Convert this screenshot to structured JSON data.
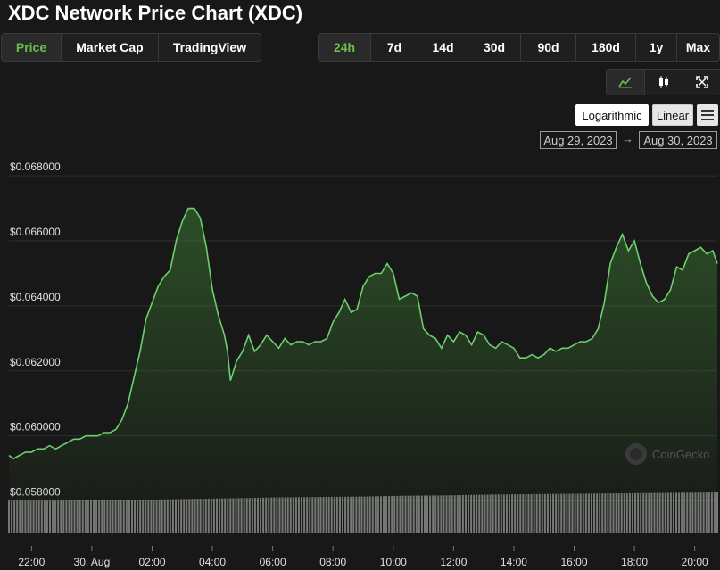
{
  "title": "XDC Network Price Chart (XDC)",
  "metric_tabs": [
    {
      "label": "Price",
      "active": true
    },
    {
      "label": "Market Cap",
      "active": false
    },
    {
      "label": "TradingView",
      "active": false
    }
  ],
  "range_tabs": [
    {
      "label": "24h",
      "active": true
    },
    {
      "label": "7d",
      "active": false
    },
    {
      "label": "14d",
      "active": false
    },
    {
      "label": "30d",
      "active": false
    },
    {
      "label": "90d",
      "active": false
    },
    {
      "label": "180d",
      "active": false
    },
    {
      "label": "1y",
      "active": false
    },
    {
      "label": "Max",
      "active": false
    }
  ],
  "view_icons": [
    "line-chart-icon",
    "candlestick-icon",
    "fullscreen-icon"
  ],
  "scale": {
    "log_label": "Logarithmic",
    "linear_label": "Linear",
    "selected": "Linear"
  },
  "date_range": {
    "from": "Aug 29, 2023",
    "arrow": "→",
    "to": "Aug 30, 2023"
  },
  "watermark": "CoinGecko",
  "colors": {
    "line": "#6ccf6c",
    "active_tab": "#6abf4b",
    "volume": "#8a8a8a"
  },
  "chart_data": {
    "type": "area",
    "title": "",
    "xlabel": "",
    "ylabel": "",
    "x_unit": "hours",
    "x_range": [
      -2.75,
      20.75
    ],
    "ylim": [
      0.057,
      0.0688
    ],
    "y_ticks": [
      {
        "value": 0.058,
        "label": "$0.058000"
      },
      {
        "value": 0.06,
        "label": "$0.060000"
      },
      {
        "value": 0.062,
        "label": "$0.062000"
      },
      {
        "value": 0.064,
        "label": "$0.064000"
      },
      {
        "value": 0.066,
        "label": "$0.066000"
      },
      {
        "value": 0.068,
        "label": "$0.068000"
      }
    ],
    "x_ticks": [
      {
        "x": -2,
        "label": "22:00"
      },
      {
        "x": 0,
        "label": "30. Aug"
      },
      {
        "x": 2,
        "label": "02:00"
      },
      {
        "x": 4,
        "label": "04:00"
      },
      {
        "x": 6,
        "label": "06:00"
      },
      {
        "x": 8,
        "label": "08:00"
      },
      {
        "x": 10,
        "label": "10:00"
      },
      {
        "x": 12,
        "label": "12:00"
      },
      {
        "x": 14,
        "label": "14:00"
      },
      {
        "x": 16,
        "label": "16:00"
      },
      {
        "x": 18,
        "label": "18:00"
      },
      {
        "x": 20,
        "label": "20:00"
      }
    ],
    "grid": true,
    "series": [
      {
        "points": [
          [
            -2.75,
            0.0594
          ],
          [
            -2.6,
            0.0593
          ],
          [
            -2.4,
            0.0594
          ],
          [
            -2.2,
            0.0595
          ],
          [
            -2.0,
            0.0595
          ],
          [
            -1.8,
            0.0596
          ],
          [
            -1.6,
            0.0596
          ],
          [
            -1.4,
            0.0597
          ],
          [
            -1.2,
            0.0596
          ],
          [
            -1.0,
            0.0597
          ],
          [
            -0.8,
            0.0598
          ],
          [
            -0.6,
            0.0599
          ],
          [
            -0.4,
            0.0599
          ],
          [
            -0.2,
            0.06
          ],
          [
            0.0,
            0.06
          ],
          [
            0.2,
            0.06
          ],
          [
            0.4,
            0.0601
          ],
          [
            0.6,
            0.0601
          ],
          [
            0.8,
            0.0602
          ],
          [
            1.0,
            0.0605
          ],
          [
            1.2,
            0.061
          ],
          [
            1.4,
            0.0618
          ],
          [
            1.6,
            0.0626
          ],
          [
            1.8,
            0.0636
          ],
          [
            2.0,
            0.0641
          ],
          [
            2.2,
            0.0646
          ],
          [
            2.4,
            0.0649
          ],
          [
            2.6,
            0.0651
          ],
          [
            2.8,
            0.066
          ],
          [
            3.0,
            0.0666
          ],
          [
            3.2,
            0.067
          ],
          [
            3.4,
            0.067
          ],
          [
            3.6,
            0.0667
          ],
          [
            3.8,
            0.0658
          ],
          [
            4.0,
            0.0645
          ],
          [
            4.2,
            0.0637
          ],
          [
            4.4,
            0.0631
          ],
          [
            4.5,
            0.0626
          ],
          [
            4.6,
            0.0617
          ],
          [
            4.8,
            0.0623
          ],
          [
            5.0,
            0.0626
          ],
          [
            5.2,
            0.0631
          ],
          [
            5.4,
            0.0626
          ],
          [
            5.6,
            0.0628
          ],
          [
            5.8,
            0.0631
          ],
          [
            6.0,
            0.0629
          ],
          [
            6.2,
            0.0627
          ],
          [
            6.4,
            0.063
          ],
          [
            6.6,
            0.0628
          ],
          [
            6.8,
            0.0629
          ],
          [
            7.0,
            0.0629
          ],
          [
            7.2,
            0.0628
          ],
          [
            7.4,
            0.0629
          ],
          [
            7.6,
            0.0629
          ],
          [
            7.8,
            0.063
          ],
          [
            8.0,
            0.0635
          ],
          [
            8.2,
            0.0638
          ],
          [
            8.4,
            0.0642
          ],
          [
            8.6,
            0.0638
          ],
          [
            8.8,
            0.0639
          ],
          [
            9.0,
            0.0646
          ],
          [
            9.2,
            0.0649
          ],
          [
            9.4,
            0.065
          ],
          [
            9.6,
            0.065
          ],
          [
            9.8,
            0.0653
          ],
          [
            10.0,
            0.065
          ],
          [
            10.2,
            0.0642
          ],
          [
            10.4,
            0.0643
          ],
          [
            10.6,
            0.0644
          ],
          [
            10.8,
            0.0643
          ],
          [
            11.0,
            0.0633
          ],
          [
            11.2,
            0.0631
          ],
          [
            11.4,
            0.063
          ],
          [
            11.6,
            0.0627
          ],
          [
            11.8,
            0.0631
          ],
          [
            12.0,
            0.0629
          ],
          [
            12.2,
            0.0632
          ],
          [
            12.4,
            0.0631
          ],
          [
            12.6,
            0.0628
          ],
          [
            12.8,
            0.0632
          ],
          [
            13.0,
            0.0631
          ],
          [
            13.2,
            0.0628
          ],
          [
            13.4,
            0.0627
          ],
          [
            13.6,
            0.0629
          ],
          [
            13.8,
            0.0628
          ],
          [
            14.0,
            0.0627
          ],
          [
            14.2,
            0.0624
          ],
          [
            14.4,
            0.0624
          ],
          [
            14.6,
            0.0625
          ],
          [
            14.8,
            0.0624
          ],
          [
            15.0,
            0.0625
          ],
          [
            15.2,
            0.0627
          ],
          [
            15.4,
            0.0626
          ],
          [
            15.6,
            0.0627
          ],
          [
            15.8,
            0.0627
          ],
          [
            16.0,
            0.0628
          ],
          [
            16.2,
            0.0629
          ],
          [
            16.4,
            0.0629
          ],
          [
            16.6,
            0.063
          ],
          [
            16.8,
            0.0633
          ],
          [
            17.0,
            0.0641
          ],
          [
            17.2,
            0.0653
          ],
          [
            17.4,
            0.0658
          ],
          [
            17.6,
            0.0662
          ],
          [
            17.8,
            0.0657
          ],
          [
            18.0,
            0.066
          ],
          [
            18.2,
            0.0653
          ],
          [
            18.4,
            0.0647
          ],
          [
            18.6,
            0.0643
          ],
          [
            18.8,
            0.0641
          ],
          [
            19.0,
            0.0642
          ],
          [
            19.2,
            0.0645
          ],
          [
            19.4,
            0.0652
          ],
          [
            19.6,
            0.0651
          ],
          [
            19.8,
            0.0656
          ],
          [
            20.0,
            0.0657
          ],
          [
            20.2,
            0.0658
          ],
          [
            20.4,
            0.0656
          ],
          [
            20.6,
            0.0657
          ],
          [
            20.75,
            0.0653
          ]
        ]
      }
    ],
    "volume": {
      "x_start": -2.75,
      "x_end": 20.75,
      "relative_height": [
        0.8,
        0.8,
        0.81,
        0.82,
        0.84,
        0.86,
        0.88,
        0.89,
        0.9,
        0.92,
        0.93,
        0.95,
        0.96,
        0.97,
        0.98,
        0.99,
        1.0
      ]
    }
  }
}
